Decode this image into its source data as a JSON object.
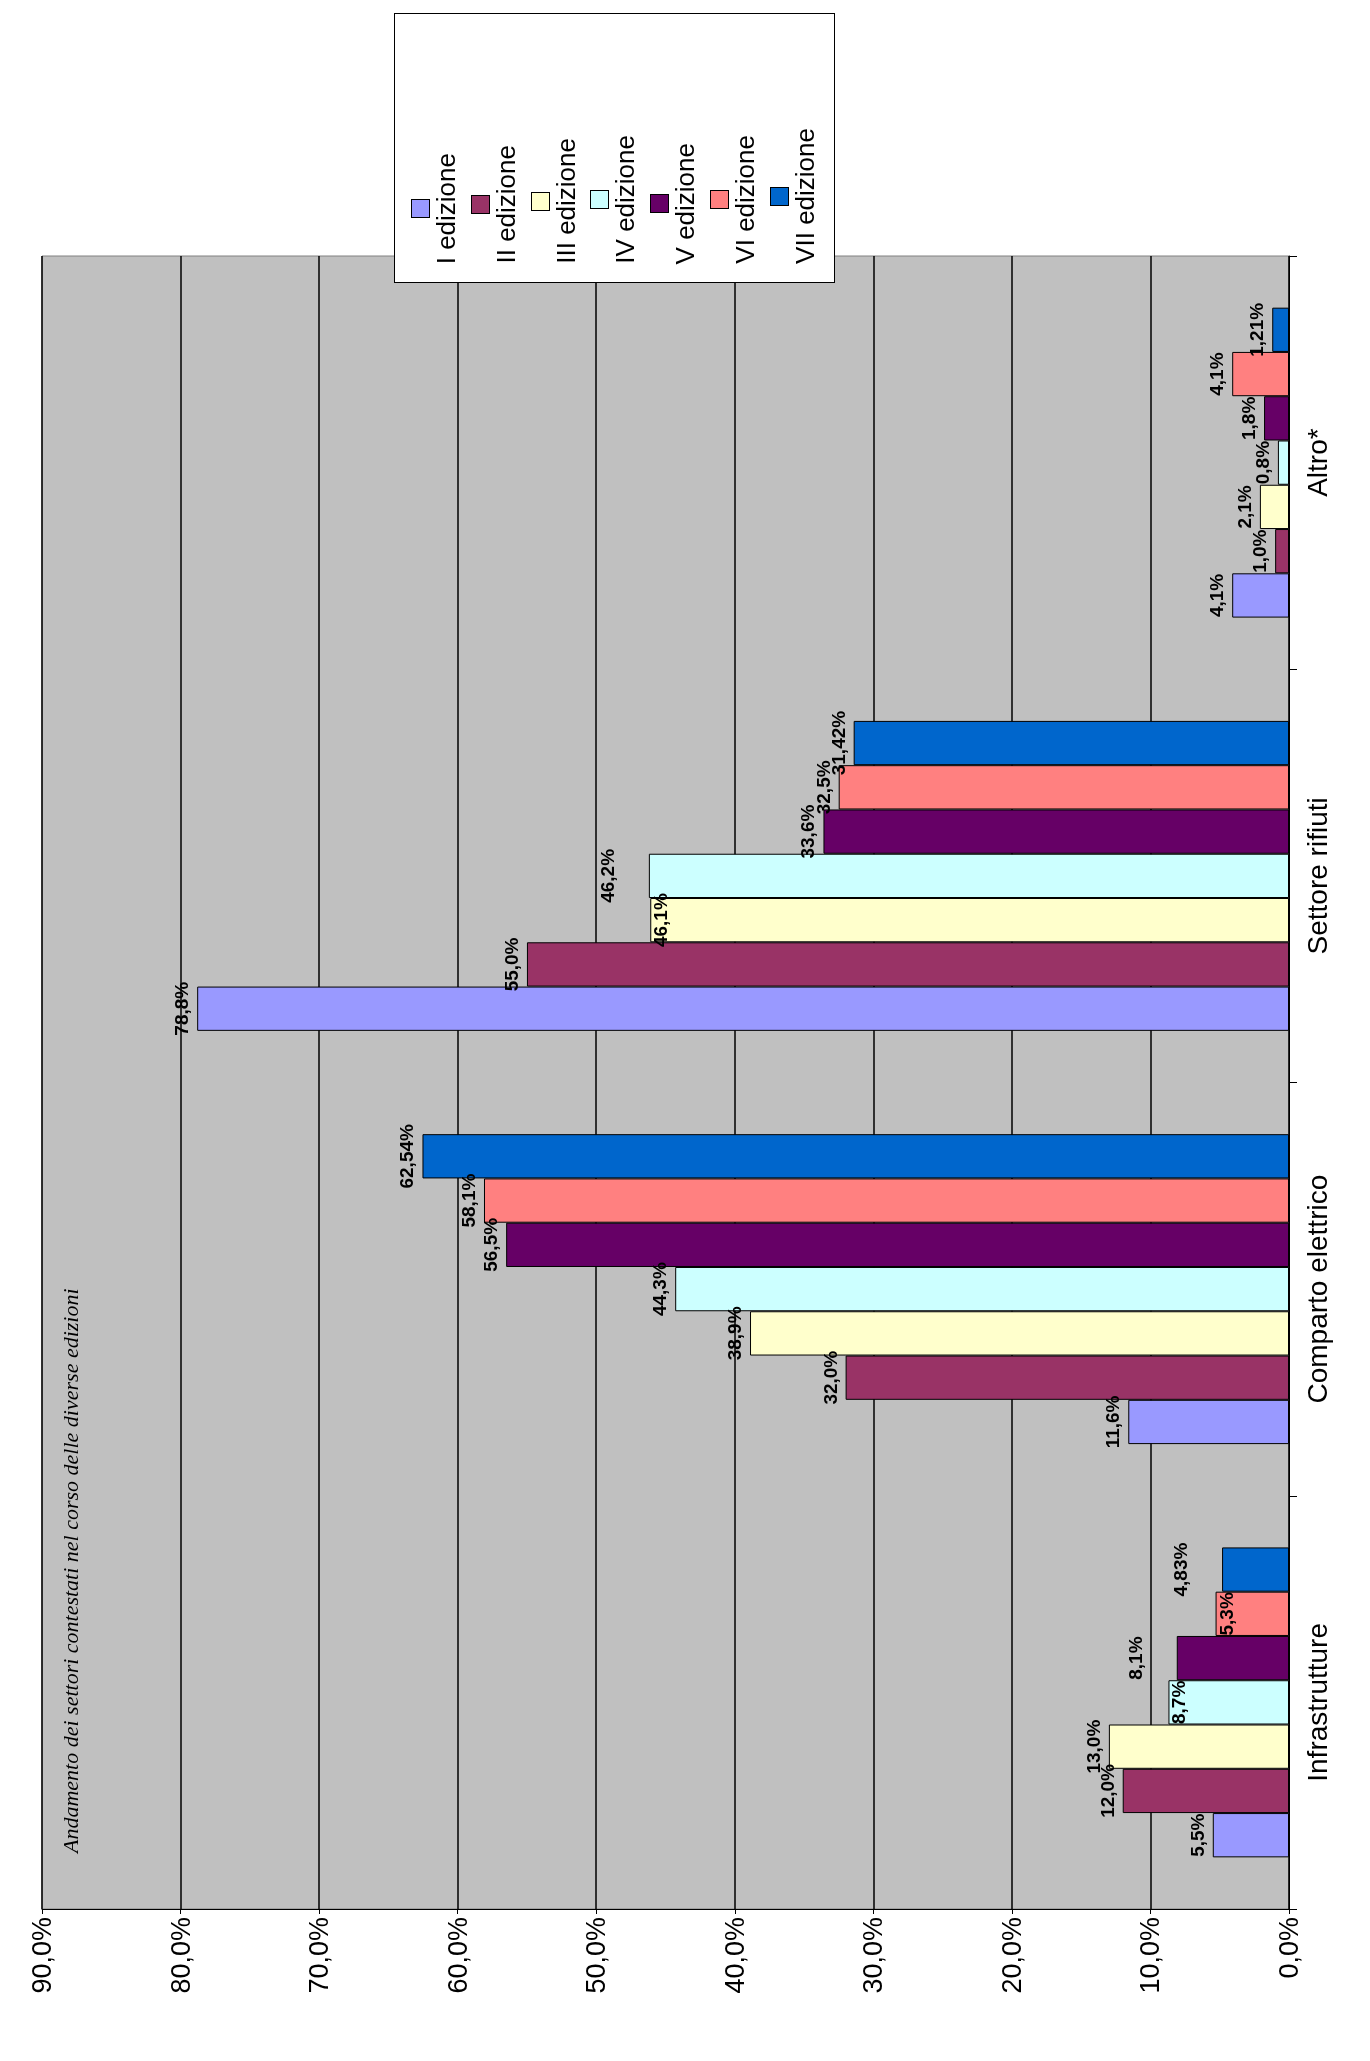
{
  "chart_data": {
    "type": "bar",
    "orientation": "horizontal",
    "title": "Andamento dei settori contestati nel corso delle diverse edizioni",
    "categories": [
      "Altro*",
      "Settore rifiuti",
      "Comparto elettrico",
      "Infrastrutture"
    ],
    "series": [
      {
        "name": "I edizione",
        "color": "#9999ff",
        "values": [
          4.1,
          78.8,
          11.6,
          5.5
        ],
        "value_labels": [
          "4,1%",
          "78,8%",
          "11,6%",
          "5,5%"
        ]
      },
      {
        "name": "II edizione",
        "color": "#993366",
        "values": [
          1.0,
          55.0,
          32.0,
          12.0
        ],
        "value_labels": [
          "1,0%",
          "55,0%",
          "32,0%",
          "12,0%"
        ]
      },
      {
        "name": "III edizione",
        "color": "#ffffcc",
        "values": [
          2.1,
          46.1,
          38.9,
          13.0
        ],
        "value_labels": [
          "2,1%",
          "46,1%",
          "38,9%",
          "13,0%"
        ]
      },
      {
        "name": "IV edizione",
        "color": "#ccffff",
        "values": [
          0.8,
          46.2,
          44.3,
          8.7
        ],
        "value_labels": [
          "0,8%",
          "46,2%",
          "44,3%",
          "8,7%"
        ]
      },
      {
        "name": "V edizione",
        "color": "#660066",
        "values": [
          1.8,
          33.6,
          56.5,
          8.1
        ],
        "value_labels": [
          "1,8%",
          "33,6%",
          "56,5%",
          "8,1%"
        ]
      },
      {
        "name": "VI edizione",
        "color": "#ff8080",
        "values": [
          4.1,
          32.5,
          58.1,
          5.3
        ],
        "value_labels": [
          "4,1%",
          "32,5%",
          "58,1%",
          "5,3%"
        ]
      },
      {
        "name": "VII edizione",
        "color": "#0066cc",
        "values": [
          1.21,
          31.42,
          62.54,
          4.83
        ],
        "value_labels": [
          "1,21%",
          "31,42%",
          "62,54%",
          "4,83%"
        ]
      }
    ],
    "xlim": [
      90,
      0
    ],
    "xticks": [
      {
        "value": 0,
        "label": "0,0%"
      },
      {
        "value": 10,
        "label": "10,0%"
      },
      {
        "value": 20,
        "label": "20,0%"
      },
      {
        "value": 30,
        "label": "30,0%"
      },
      {
        "value": 40,
        "label": "40,0%"
      },
      {
        "value": 50,
        "label": "50,0%"
      },
      {
        "value": 60,
        "label": "60,0%"
      },
      {
        "value": 70,
        "label": "70,0%"
      },
      {
        "value": 80,
        "label": "80,0%"
      },
      {
        "value": 90,
        "label": "90,0%"
      }
    ],
    "grid": "x",
    "legend": "top"
  }
}
